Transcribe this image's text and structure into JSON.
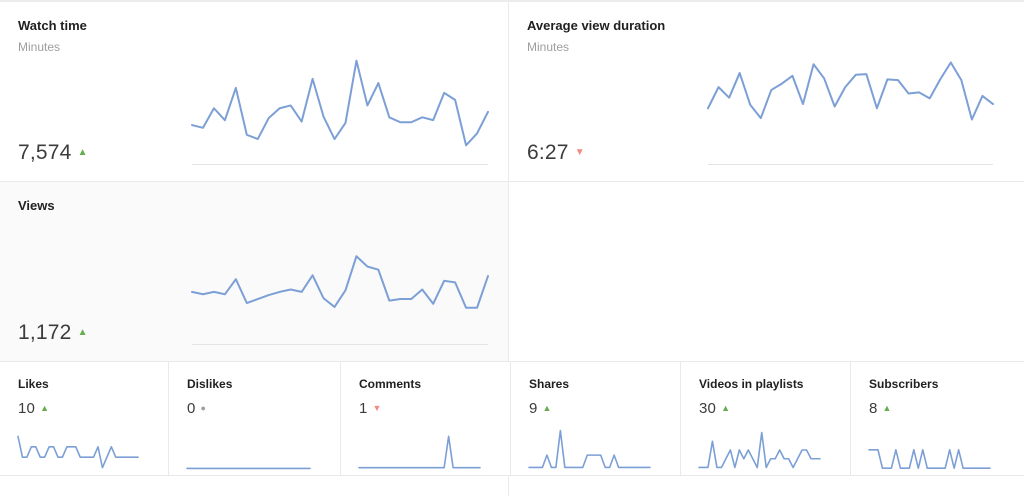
{
  "colors": {
    "line": "#7c9fd6",
    "up": "#65ad4e",
    "down": "#f28b82",
    "flat": "#a0a0a0",
    "title": "#212121",
    "subtitle": "#9e9e9e",
    "value": "#3c3c3c",
    "divider": "#e9e9e9",
    "views_card_bg": "#fafafa"
  },
  "cards": {
    "watch_time": {
      "title": "Watch time",
      "subtitle": "Minutes",
      "value": "7,574",
      "trend": "up",
      "trend_glyph": "▲"
    },
    "average_view_duration": {
      "title": "Average view duration",
      "subtitle": "Minutes",
      "value": "6:27",
      "trend": "down",
      "trend_glyph": "▼"
    },
    "views": {
      "title": "Views",
      "value": "1,172",
      "trend": "up",
      "trend_glyph": "▲"
    },
    "likes": {
      "title": "Likes",
      "value": "10",
      "trend": "up",
      "trend_glyph": "▲"
    },
    "dislikes": {
      "title": "Dislikes",
      "value": "0",
      "trend": "flat",
      "trend_glyph": "●"
    },
    "comments": {
      "title": "Comments",
      "value": "1",
      "trend": "down",
      "trend_glyph": "▼"
    },
    "shares": {
      "title": "Shares",
      "value": "9",
      "trend": "up",
      "trend_glyph": "▲"
    },
    "videos_in_playlists": {
      "title": "Videos in playlists",
      "value": "30",
      "trend": "up",
      "trend_glyph": "▲"
    },
    "subscribers": {
      "title": "Subscribers",
      "value": "8",
      "trend": "up",
      "trend_glyph": "▲"
    }
  },
  "chart_data": [
    {
      "id": "watch_time",
      "type": "line",
      "title": "Watch time",
      "ylabel": "Minutes",
      "summary_value": "7,574",
      "trend": "up",
      "x": "28 daily points (axis unlabeled)",
      "grid": false,
      "legend": false,
      "values": [
        190,
        170,
        310,
        225,
        455,
        120,
        90,
        240,
        310,
        330,
        215,
        520,
        250,
        90,
        205,
        650,
        330,
        490,
        245,
        210,
        210,
        245,
        225,
        420,
        370,
        45,
        130,
        284
      ]
    },
    {
      "id": "average_view_duration",
      "type": "line",
      "title": "Average view duration",
      "ylabel": "Minutes",
      "summary_value": "6:27",
      "trend": "down",
      "unit": "seconds (estimated)",
      "x": "28 daily points (axis unlabeled)",
      "grid": false,
      "legend": false,
      "values": [
        350,
        410,
        380,
        450,
        360,
        322,
        402,
        420,
        442,
        362,
        475,
        435,
        355,
        410,
        445,
        447,
        350,
        432,
        430,
        392,
        395,
        378,
        432,
        480,
        430,
        318,
        385,
        362
      ]
    },
    {
      "id": "views",
      "type": "line",
      "title": "Views",
      "summary_value": "1,172",
      "trend": "up",
      "x": "28 daily points (axis unlabeled)",
      "grid": false,
      "legend": false,
      "values": [
        40,
        37,
        40,
        37,
        56,
        26,
        31,
        36,
        40,
        43,
        40,
        61,
        32,
        21,
        42,
        85,
        72,
        68,
        29,
        31,
        31,
        43,
        25,
        54,
        52,
        20,
        20,
        60
      ]
    },
    {
      "id": "likes",
      "type": "line",
      "title": "Likes",
      "summary_value": "10",
      "trend": "up",
      "x": "28 daily points (axis unlabeled)",
      "grid": false,
      "legend": false,
      "values": [
        2,
        0,
        0,
        1,
        1,
        0,
        0,
        1,
        1,
        0,
        0,
        1,
        1,
        1,
        0,
        0,
        0,
        0,
        1,
        -1,
        0,
        1,
        0,
        0,
        0,
        0,
        0,
        0
      ]
    },
    {
      "id": "dislikes",
      "type": "line",
      "title": "Dislikes",
      "summary_value": "0",
      "trend": "flat",
      "x": "28 daily points (axis unlabeled)",
      "grid": false,
      "legend": false,
      "values": [
        0,
        0,
        0,
        0,
        0,
        0,
        0,
        0,
        0,
        0,
        0,
        0,
        0,
        0,
        0,
        0,
        0,
        0,
        0,
        0,
        0,
        0,
        0,
        0,
        0,
        0,
        0,
        0
      ]
    },
    {
      "id": "comments",
      "type": "line",
      "title": "Comments",
      "summary_value": "1",
      "trend": "down",
      "x": "28 daily points (axis unlabeled)",
      "grid": false,
      "legend": false,
      "values": [
        0,
        0,
        0,
        0,
        0,
        0,
        0,
        0,
        0,
        0,
        0,
        0,
        0,
        0,
        0,
        0,
        0,
        0,
        0,
        0,
        1,
        0,
        0,
        0,
        0,
        0,
        0,
        0
      ]
    },
    {
      "id": "shares",
      "type": "line",
      "title": "Shares",
      "summary_value": "9",
      "trend": "up",
      "x": "28 daily points (axis unlabeled)",
      "grid": false,
      "legend": false,
      "values": [
        0,
        0,
        0,
        0,
        1,
        0,
        0,
        3,
        0,
        0,
        0,
        0,
        0,
        1,
        1,
        1,
        1,
        0,
        0,
        1,
        0,
        0,
        0,
        0,
        0,
        0,
        0,
        0
      ]
    },
    {
      "id": "videos_in_playlists",
      "type": "line",
      "title": "Videos in playlists",
      "summary_value": "30",
      "trend": "up",
      "x": "28 daily points (axis unlabeled)",
      "grid": false,
      "legend": false,
      "values": [
        0,
        0,
        0,
        3,
        0,
        0,
        1,
        2,
        0,
        2,
        1,
        2,
        1,
        0,
        4,
        0,
        1,
        1,
        2,
        1,
        1,
        0,
        1,
        2,
        2,
        1,
        1,
        1
      ]
    },
    {
      "id": "subscribers",
      "type": "line",
      "title": "Subscribers",
      "summary_value": "8",
      "trend": "up",
      "x": "28 daily points (axis unlabeled)",
      "grid": false,
      "legend": false,
      "values": [
        1,
        1,
        1,
        0,
        0,
        0,
        1,
        0,
        0,
        0,
        1,
        0,
        1,
        0,
        0,
        0,
        0,
        0,
        1,
        0,
        1,
        0,
        0,
        0,
        0,
        0,
        0,
        0
      ]
    }
  ]
}
